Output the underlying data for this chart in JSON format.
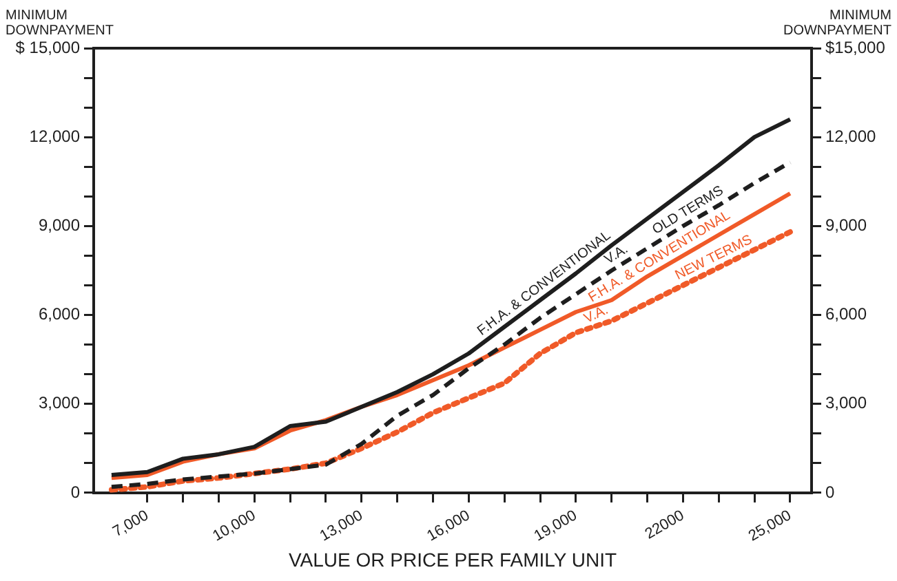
{
  "chart_data": {
    "type": "line",
    "xlabel": "VALUE OR PRICE PER FAMILY UNIT",
    "ylabel": "MINIMUM DOWNPAYMENT",
    "y2label": "MINIMUM DOWNPAYMENT",
    "x": [
      6000,
      7000,
      8000,
      9000,
      10000,
      11000,
      12000,
      13000,
      14000,
      15000,
      16000,
      17000,
      18000,
      19000,
      20000,
      21000,
      22000,
      23000,
      24000,
      25000
    ],
    "series": [
      {
        "color": "#1e1e1e",
        "line_style": "solid",
        "values": [
          600,
          700,
          1150,
          1300,
          1550,
          2250,
          2400,
          2900,
          3400,
          4000,
          4700,
          5600,
          6500,
          7400,
          8350,
          9250,
          10150,
          11050,
          12000,
          12600
        ]
      },
      {
        "color": "#1e1e1e",
        "line_style": "dashed",
        "values": [
          200,
          300,
          450,
          550,
          650,
          800,
          950,
          1650,
          2600,
          3300,
          4200,
          5000,
          5900,
          6700,
          7500,
          8250,
          9000,
          9700,
          10450,
          11150
        ]
      },
      {
        "color": "#f05a28",
        "line_style": "solid",
        "values": [
          500,
          600,
          1050,
          1300,
          1500,
          2100,
          2450,
          2900,
          3300,
          3800,
          4300,
          4900,
          5500,
          6100,
          6500,
          7300,
          8000,
          8700,
          9400,
          10100
        ]
      },
      {
        "color": "#f05a28",
        "line_style": "dotted",
        "values": [
          100,
          200,
          400,
          500,
          650,
          800,
          1000,
          1500,
          2050,
          2700,
          3200,
          3700,
          4700,
          5400,
          5800,
          6400,
          7000,
          7600,
          8200,
          8800
        ]
      }
    ],
    "xlim": [
      5500,
      25600
    ],
    "xticks": [
      {
        "value": 7000,
        "label": "7,000"
      },
      {
        "value": 8000,
        "label": null
      },
      {
        "value": 9000,
        "label": null
      },
      {
        "value": 10000,
        "label": "10,000"
      },
      {
        "value": 11000,
        "label": null
      },
      {
        "value": 12000,
        "label": null
      },
      {
        "value": 13000,
        "label": "13,000"
      },
      {
        "value": 14000,
        "label": null
      },
      {
        "value": 15000,
        "label": null
      },
      {
        "value": 16000,
        "label": "16,000"
      },
      {
        "value": 17000,
        "label": null
      },
      {
        "value": 18000,
        "label": null
      },
      {
        "value": 19000,
        "label": "19,000"
      },
      {
        "value": 20000,
        "label": null
      },
      {
        "value": 21000,
        "label": null
      },
      {
        "value": 22000,
        "label": "22000"
      },
      {
        "value": 23000,
        "label": null
      },
      {
        "value": 24000,
        "label": null
      },
      {
        "value": 25000,
        "label": "25,000"
      }
    ],
    "ylim": [
      0,
      15000
    ],
    "yticks": [
      0,
      {
        "value": 1000,
        "label": null
      },
      {
        "value": 2000,
        "label": null
      },
      {
        "value": 3000,
        "label": "3,000"
      },
      {
        "value": 4000,
        "label": null
      },
      {
        "value": 5000,
        "label": null
      },
      {
        "value": 6000,
        "label": "6,000"
      },
      {
        "value": 7000,
        "label": null
      },
      {
        "value": 8000,
        "label": null
      },
      {
        "value": 9000,
        "label": "9,000"
      },
      {
        "value": 10000,
        "label": null
      },
      {
        "value": 11000,
        "label": null
      },
      {
        "value": 12000,
        "label": "12,000"
      },
      {
        "value": 13000,
        "label": null
      },
      {
        "value": 14000,
        "label": null
      },
      {
        "value": 15000,
        "label": "$ 15,000"
      }
    ],
    "y2lim": [
      0,
      15000
    ],
    "y2ticks": [
      0,
      {
        "value": 1000,
        "label": null
      },
      {
        "value": 2000,
        "label": null
      },
      {
        "value": 3000,
        "label": "3,000"
      },
      {
        "value": 4000,
        "label": null
      },
      {
        "value": 5000,
        "label": null
      },
      {
        "value": 6000,
        "label": "6,000"
      },
      {
        "value": 7000,
        "label": null
      },
      {
        "value": 8000,
        "label": null
      },
      {
        "value": 9000,
        "label": "9,000"
      },
      {
        "value": 10000,
        "label": null
      },
      {
        "value": 11000,
        "label": null
      },
      {
        "value": 12000,
        "label": "12,000"
      },
      {
        "value": 13000,
        "label": null
      },
      {
        "value": 14000,
        "label": null
      },
      {
        "value": 15000,
        "label": "$15,000"
      }
    ],
    "grid": false,
    "legend": false,
    "marker": "none",
    "annotations": [
      {
        "text": "F.H.A. & CONVENTIONAL",
        "x": 18300,
        "y": 6770
      },
      {
        "text": "OLD TERMS",
        "x": 22300,
        "y": 9210
      },
      {
        "text": "V.A.",
        "x": 20300,
        "y": 7725
      },
      {
        "text": "F.H.A. & CONVENTIONAL",
        "x": 21500,
        "y": 7650
      },
      {
        "text": "NEW TERMS",
        "x": 23000,
        "y": 7600
      },
      {
        "text": "V.A.",
        "x": 19700,
        "y": 5680
      }
    ]
  }
}
